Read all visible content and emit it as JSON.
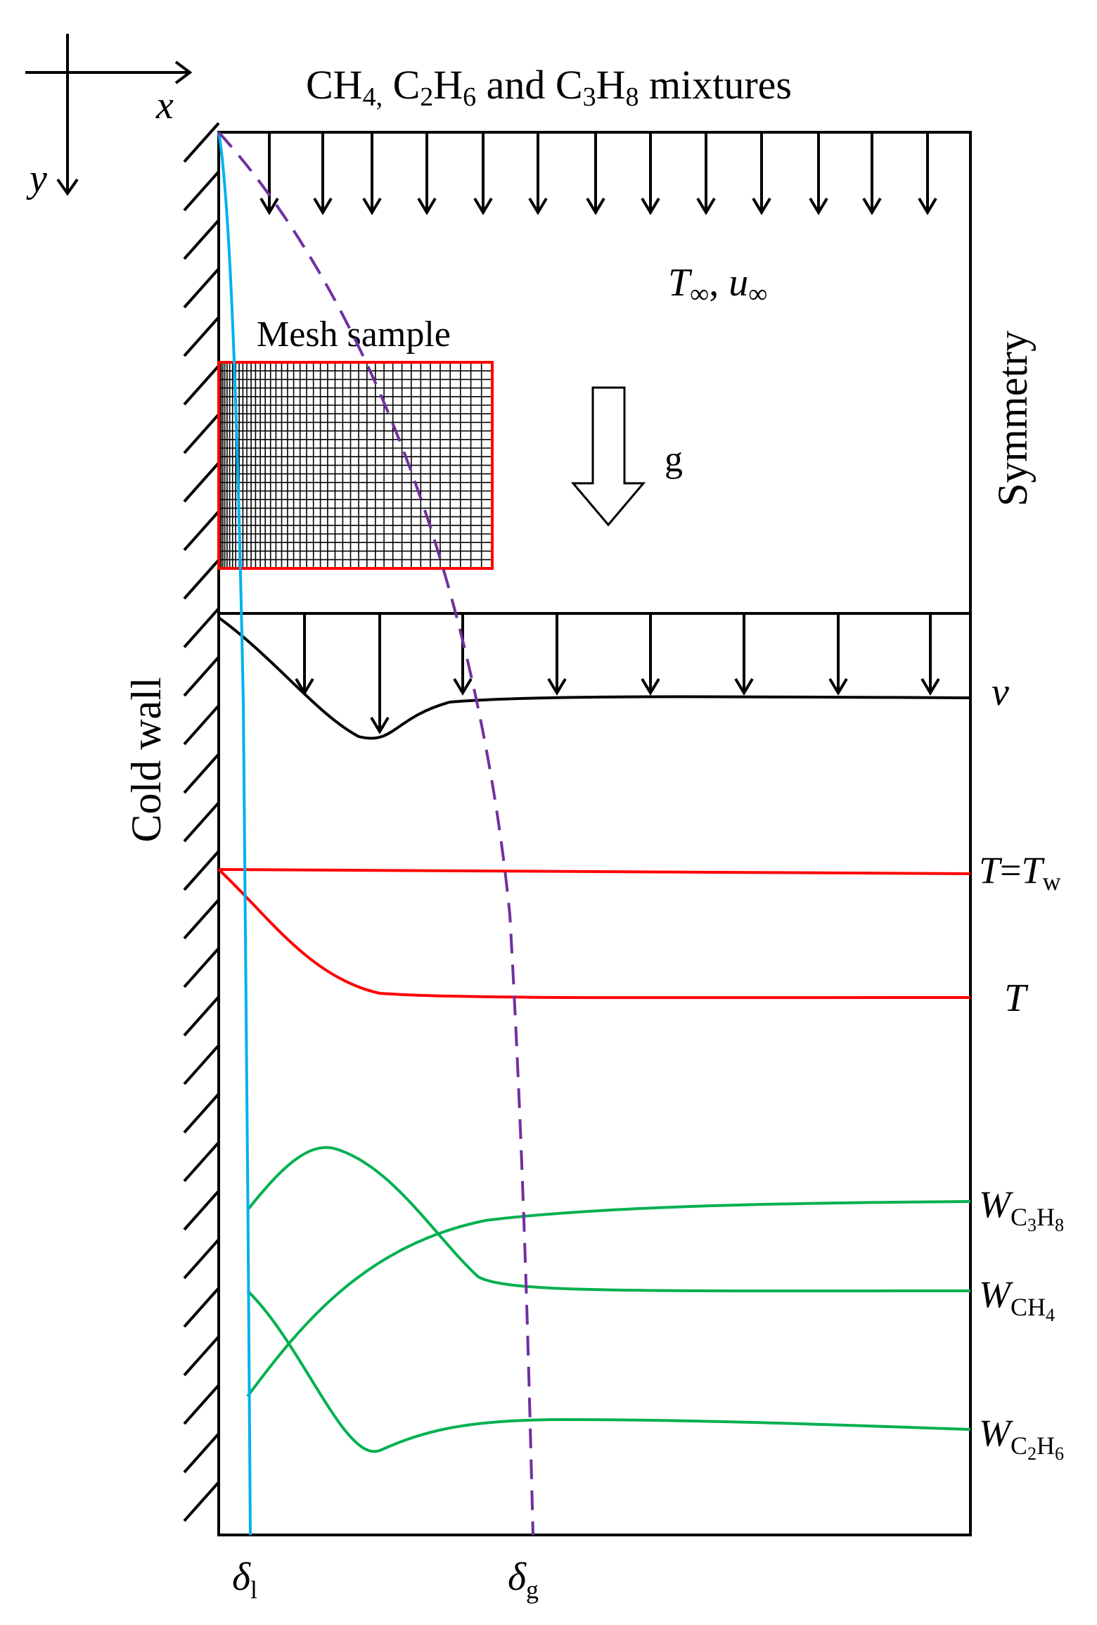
{
  "title": "CH",
  "title_parts": [
    {
      "t": "CH"
    },
    {
      "t": "4,",
      "sub": true
    },
    {
      "t": " C"
    },
    {
      "t": "2",
      "sub": true
    },
    {
      "t": "H"
    },
    {
      "t": "6",
      "sub": true
    },
    {
      "t": " and C"
    },
    {
      "t": "3",
      "sub": true
    },
    {
      "t": "H"
    },
    {
      "t": "8",
      "sub": true
    },
    {
      "t": " mixtures"
    }
  ],
  "axes": {
    "x": "x",
    "y": "y"
  },
  "freestream": {
    "T": "T",
    "T_sub": "∞",
    "sep": ", ",
    "u": "u",
    "u_sub": "∞"
  },
  "mesh_label": "Mesh sample",
  "gravity_label": "g",
  "wall_label": "Cold wall",
  "symmetry_label": "Symmetry",
  "profiles": {
    "v": "v",
    "T_wall": {
      "main": "T",
      "eq": "=",
      "main2": "T",
      "sub": "w"
    },
    "T": "T",
    "W_C3H8": {
      "main": "W",
      "sub": [
        "C",
        "3",
        "H",
        "8"
      ]
    },
    "W_CH4": {
      "main": "W",
      "sub": [
        "CH",
        "4"
      ]
    },
    "W_C2H6": {
      "main": "W",
      "sub": [
        "C",
        "2",
        "H",
        "6"
      ]
    }
  },
  "thickness": {
    "liquid": {
      "main": "δ",
      "sub": "l"
    },
    "gas": {
      "main": "δ",
      "sub": "g"
    }
  },
  "colors": {
    "wall_line": "#000000",
    "velocity": "#000000",
    "temperature": "#ff0000",
    "mass_fraction": "#00b050",
    "liquid_film": "#00b0f0",
    "gas_boundary": "#7030a0",
    "mesh_border": "#ff0000",
    "mesh_lines": "#000000"
  }
}
